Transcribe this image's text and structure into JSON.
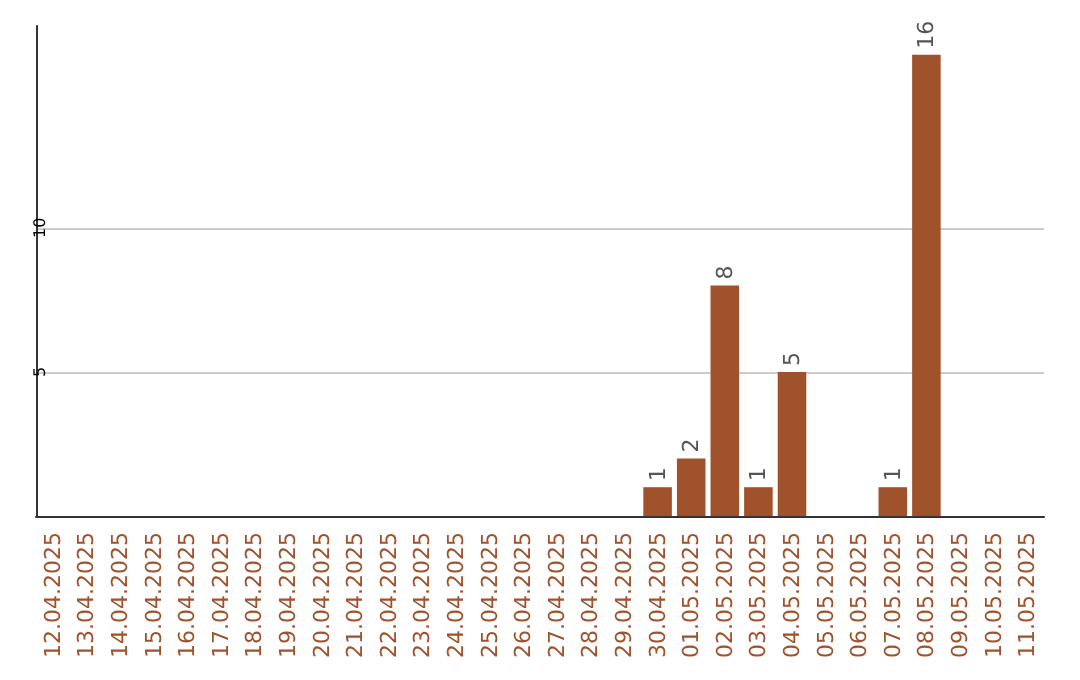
{
  "chart_data": {
    "type": "bar",
    "categories": [
      "12.04.2025",
      "13.04.2025",
      "14.04.2025",
      "15.04.2025",
      "16.04.2025",
      "17.04.2025",
      "18.04.2025",
      "19.04.2025",
      "20.04.2025",
      "21.04.2025",
      "22.04.2025",
      "23.04.2025",
      "24.04.2025",
      "25.04.2025",
      "26.04.2025",
      "27.04.2025",
      "28.04.2025",
      "29.04.2025",
      "30.04.2025",
      "01.05.2025",
      "02.05.2025",
      "03.05.2025",
      "04.05.2025",
      "05.05.2025",
      "06.05.2025",
      "07.05.2025",
      "08.05.2025",
      "09.05.2025",
      "10.05.2025",
      "11.05.2025"
    ],
    "values": [
      0,
      0,
      0,
      0,
      0,
      0,
      0,
      0,
      0,
      0,
      0,
      0,
      0,
      0,
      0,
      0,
      0,
      0,
      1,
      2,
      8,
      1,
      5,
      0,
      0,
      1,
      16,
      0,
      0,
      0
    ],
    "value_labels": [
      null,
      null,
      null,
      null,
      null,
      null,
      null,
      null,
      null,
      null,
      null,
      null,
      null,
      null,
      null,
      null,
      null,
      null,
      "1",
      "2",
      "8",
      "1",
      "5",
      null,
      null,
      "1",
      "16",
      null,
      null,
      null
    ],
    "color": "#a0522d",
    "ylim": [
      0,
      17
    ],
    "yticks": [
      5,
      10
    ],
    "grid": "y"
  }
}
